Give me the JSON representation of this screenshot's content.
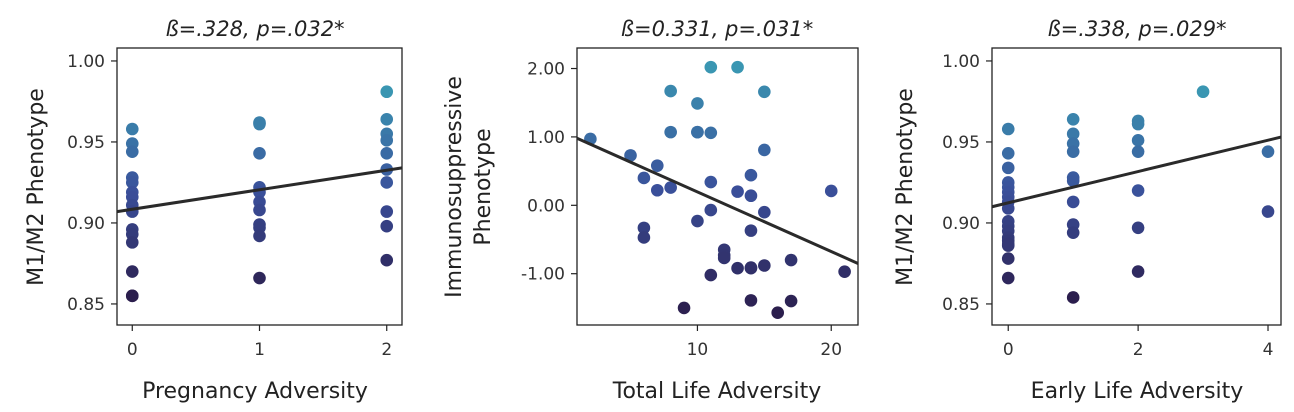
{
  "colors": {
    "background": "#ffffff",
    "axis": "#222222",
    "regression_line": "#2a2a2a",
    "point_low": "#2b1e4d",
    "point_mid": "#3a4f9a",
    "point_high": "#3a96b2"
  },
  "chart_data": [
    {
      "type": "scatter",
      "title": "ß=.328, p=.032*",
      "xlabel": "Pregnancy Adversity",
      "ylabel": "M1/M2 Phenotype",
      "xlim": [
        -0.12,
        2.12
      ],
      "ylim": [
        0.837,
        1.008
      ],
      "xticks": [
        0,
        1,
        2
      ],
      "xtick_labels": [
        "0",
        "1",
        "2"
      ],
      "yticks": [
        0.85,
        0.9,
        0.95,
        1.0
      ],
      "ytick_labels": [
        "0.85",
        "0.90",
        "0.95",
        "1.00"
      ],
      "regression": {
        "x": [
          -0.12,
          2.12
        ],
        "y": [
          0.907,
          0.934
        ]
      },
      "points": {
        "x": [
          0,
          0,
          0,
          0,
          0,
          0,
          0,
          0,
          0,
          0,
          0,
          0,
          0,
          0,
          0,
          1,
          1,
          1,
          1,
          1,
          1,
          1,
          1,
          1,
          1,
          1,
          2,
          2,
          2,
          2,
          2,
          2,
          2,
          2,
          2,
          2
        ],
        "y": [
          0.958,
          0.949,
          0.944,
          0.928,
          0.925,
          0.919,
          0.916,
          0.911,
          0.907,
          0.896,
          0.893,
          0.888,
          0.87,
          0.855,
          0.855,
          0.962,
          0.961,
          0.943,
          0.922,
          0.919,
          0.913,
          0.908,
          0.899,
          0.897,
          0.892,
          0.866,
          0.981,
          0.964,
          0.955,
          0.951,
          0.943,
          0.933,
          0.925,
          0.907,
          0.898,
          0.877
        ]
      }
    },
    {
      "type": "scatter",
      "title": "ß=0.331, p=.031*",
      "xlabel": "Total Life Adversity",
      "ylabel": "Immunosuppressive Phenotype",
      "ylabel_lines": [
        "Immunosuppressive",
        "Phenotype"
      ],
      "xlim": [
        1,
        22
      ],
      "ylim": [
        -1.75,
        2.3
      ],
      "xticks": [
        10,
        20
      ],
      "xtick_labels": [
        "10",
        "20"
      ],
      "yticks": [
        -1,
        0,
        1,
        2
      ],
      "ytick_labels": [
        "-1.00",
        "0.00",
        "1.00",
        "2.00"
      ],
      "regression": {
        "x": [
          1,
          22
        ],
        "y": [
          0.98,
          -0.85
        ]
      },
      "points": {
        "x": [
          2,
          5,
          6,
          6,
          6,
          7,
          7,
          8,
          8,
          8,
          9,
          10,
          10,
          10,
          10,
          11,
          11,
          11,
          11,
          11,
          12,
          12,
          12,
          13,
          13,
          13,
          14,
          14,
          14,
          14,
          14,
          14,
          15,
          15,
          15,
          15,
          16,
          17,
          17,
          20,
          21
        ],
        "y": [
          0.97,
          0.73,
          0.4,
          -0.33,
          -0.47,
          0.58,
          0.22,
          1.67,
          1.07,
          0.26,
          -1.5,
          1.49,
          1.07,
          1.07,
          -0.23,
          2.02,
          1.06,
          0.34,
          -0.07,
          -1.02,
          -0.65,
          -0.73,
          -0.77,
          2.02,
          0.2,
          -0.92,
          0.44,
          0.14,
          -0.37,
          -0.92,
          -0.91,
          -1.39,
          1.66,
          0.81,
          -0.1,
          -0.88,
          -1.57,
          -0.8,
          -1.4,
          0.21,
          -0.97
        ]
      }
    },
    {
      "type": "scatter",
      "title": "ß=.338, p=.029*",
      "xlabel": "Early Life Adversity",
      "ylabel": "M1/M2 Phenotype",
      "xlim": [
        -0.25,
        4.2
      ],
      "ylim": [
        0.837,
        1.008
      ],
      "xticks": [
        0,
        2,
        4
      ],
      "xtick_labels": [
        "0",
        "2",
        "4"
      ],
      "yticks": [
        0.85,
        0.9,
        0.95,
        1.0
      ],
      "ytick_labels": [
        "0.85",
        "0.90",
        "0.95",
        "1.00"
      ],
      "regression": {
        "x": [
          -0.25,
          4.2
        ],
        "y": [
          0.91,
          0.953
        ]
      },
      "points": {
        "x": [
          0,
          0,
          0,
          0,
          0,
          0,
          0,
          0,
          0,
          0,
          0,
          0,
          0,
          0,
          0,
          0,
          0,
          0,
          1,
          1,
          1,
          1,
          1,
          1,
          1,
          1,
          1,
          1,
          2,
          2,
          2,
          2,
          2,
          2,
          2,
          3,
          4,
          4
        ],
        "y": [
          0.958,
          0.943,
          0.934,
          0.925,
          0.922,
          0.919,
          0.916,
          0.913,
          0.909,
          0.901,
          0.898,
          0.895,
          0.891,
          0.889,
          0.886,
          0.887,
          0.878,
          0.866,
          0.964,
          0.955,
          0.949,
          0.944,
          0.928,
          0.926,
          0.913,
          0.899,
          0.894,
          0.854,
          0.963,
          0.961,
          0.951,
          0.944,
          0.92,
          0.897,
          0.87,
          0.981,
          0.944,
          0.907
        ]
      }
    }
  ]
}
